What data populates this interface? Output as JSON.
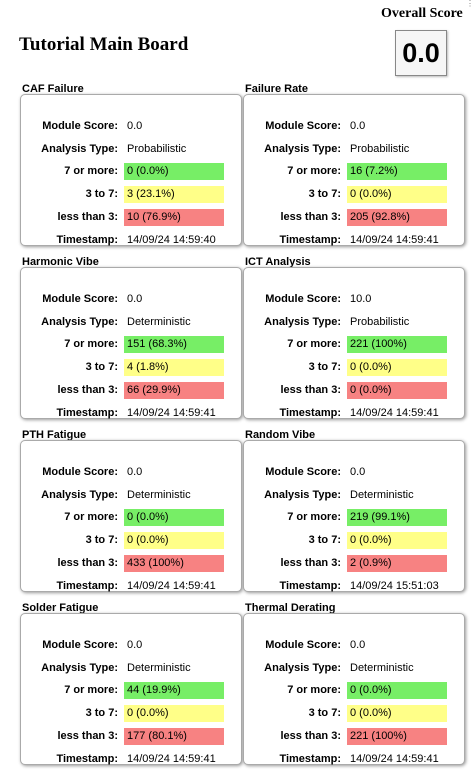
{
  "header": {
    "title": "Tutorial Main Board",
    "overall_label": "Overall Score",
    "overall_value": "0.0",
    "corner_mark": "⋮"
  },
  "labels": {
    "module_score": "Module Score:",
    "analysis_type": "Analysis Type:",
    "seven_or_more": "7 or more:",
    "three_to_seven": "3 to 7:",
    "less_than_three": "less than 3:",
    "timestamp": "Timestamp:"
  },
  "colors": {
    "green": "#77ee66",
    "yellow": "#ffff88",
    "red": "#f78282"
  },
  "modules": [
    {
      "name": "CAF Failure",
      "score": "0.0",
      "type": "Probabilistic",
      "high": "0 (0.0%)",
      "mid": "3 (23.1%)",
      "low": "10 (76.9%)",
      "timestamp": "14/09/24 14:59:40"
    },
    {
      "name": "Failure Rate",
      "score": "0.0",
      "type": "Probabilistic",
      "high": "16 (7.2%)",
      "mid": "0 (0.0%)",
      "low": "205 (92.8%)",
      "timestamp": "14/09/24 14:59:41"
    },
    {
      "name": "Harmonic Vibe",
      "score": "0.0",
      "type": "Deterministic",
      "high": "151 (68.3%)",
      "mid": "4 (1.8%)",
      "low": "66 (29.9%)",
      "timestamp": "14/09/24 14:59:41"
    },
    {
      "name": "ICT Analysis",
      "score": "10.0",
      "type": "Probabilistic",
      "high": "221 (100%)",
      "mid": "0 (0.0%)",
      "low": "0 (0.0%)",
      "timestamp": "14/09/24 14:59:41"
    },
    {
      "name": "PTH Fatigue",
      "score": "0.0",
      "type": "Deterministic",
      "high": "0 (0.0%)",
      "mid": "0 (0.0%)",
      "low": "433 (100%)",
      "timestamp": "14/09/24 14:59:41"
    },
    {
      "name": "Random Vibe",
      "score": "0.0",
      "type": "Deterministic",
      "high": "219 (99.1%)",
      "mid": "0 (0.0%)",
      "low": "2 (0.9%)",
      "timestamp": "14/09/24 15:51:03"
    },
    {
      "name": "Solder Fatigue",
      "score": "0.0",
      "type": "Deterministic",
      "high": "44 (19.9%)",
      "mid": "0 (0.0%)",
      "low": "177 (80.1%)",
      "timestamp": "14/09/24 14:59:41"
    },
    {
      "name": "Thermal Derating",
      "score": "0.0",
      "type": "Deterministic",
      "high": "0 (0.0%)",
      "mid": "0 (0.0%)",
      "low": "221 (100%)",
      "timestamp": "14/09/24 14:59:41"
    }
  ]
}
